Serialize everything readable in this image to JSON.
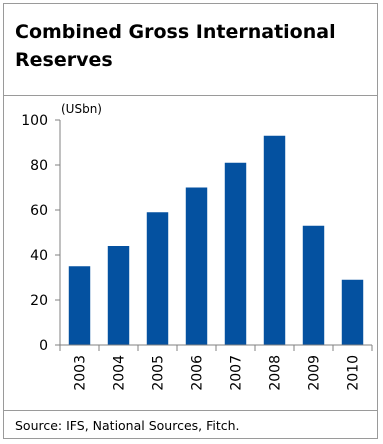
{
  "figure": {
    "title": "Combined Gross International Reserves",
    "source": "Source: IFS, National Sources, Fitch."
  },
  "chart_data": {
    "type": "bar",
    "title": "Combined Gross International Reserves",
    "unit_label": "(USbn)",
    "xlabel": "",
    "ylabel": "",
    "categories": [
      "2003",
      "2004",
      "2005",
      "2006",
      "2007",
      "2008",
      "2009",
      "2010"
    ],
    "values": [
      35,
      44,
      59,
      70,
      81,
      93,
      53,
      29
    ],
    "ylim": [
      0,
      100
    ],
    "yticks": [
      0,
      20,
      40,
      60,
      80,
      100
    ],
    "grid": false,
    "legend": "none",
    "bar_color": "#0451a0"
  }
}
